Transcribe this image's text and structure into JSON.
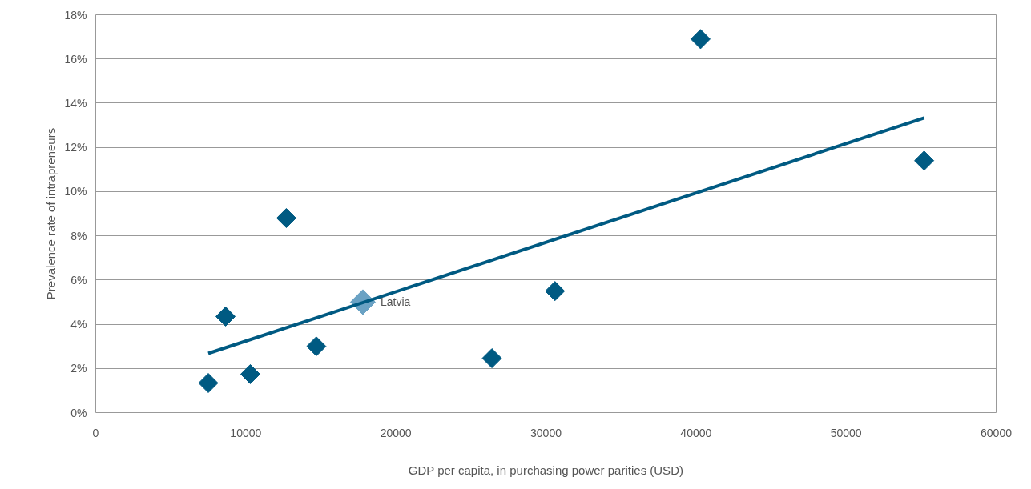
{
  "chart_data": {
    "type": "scatter",
    "xlabel": "GDP per capita, in purchasing power parities (USD)",
    "ylabel": "Prevalence rate of intrapreneurs",
    "xlim": [
      0,
      60000
    ],
    "xticks": [
      0,
      10000,
      20000,
      30000,
      40000,
      50000,
      60000
    ],
    "ylim": [
      0,
      18
    ],
    "yticks": [
      {
        "value": 0,
        "label": "0%"
      },
      {
        "value": 2,
        "label": "2%"
      },
      {
        "value": 4,
        "label": "4%"
      },
      {
        "value": 6,
        "label": "6%"
      },
      {
        "value": 8,
        "label": "8%"
      },
      {
        "value": 10,
        "label": "10%"
      },
      {
        "value": 12,
        "label": "12%"
      },
      {
        "value": 14,
        "label": "14%"
      },
      {
        "value": 16,
        "label": "16%"
      },
      {
        "value": 18,
        "label": "18%"
      }
    ],
    "grid": "y",
    "series": [
      {
        "marker": "diamond",
        "color": "#005a82",
        "x": [
          7500,
          8650,
          10300,
          12700,
          14700,
          26400,
          30600,
          40300,
          55200
        ],
        "values": [
          1.34,
          4.35,
          1.74,
          8.8,
          3.0,
          2.46,
          5.5,
          16.9,
          11.4
        ]
      },
      {
        "marker": "diamond",
        "name": "Latvia",
        "color": "#6aa2c4",
        "x": [
          17800
        ],
        "values": [
          5.0
        ]
      },
      {
        "type": "line",
        "marker": "none",
        "color": "#005a82",
        "x": [
          7500,
          55200
        ],
        "values": [
          2.68,
          13.33
        ]
      }
    ]
  }
}
